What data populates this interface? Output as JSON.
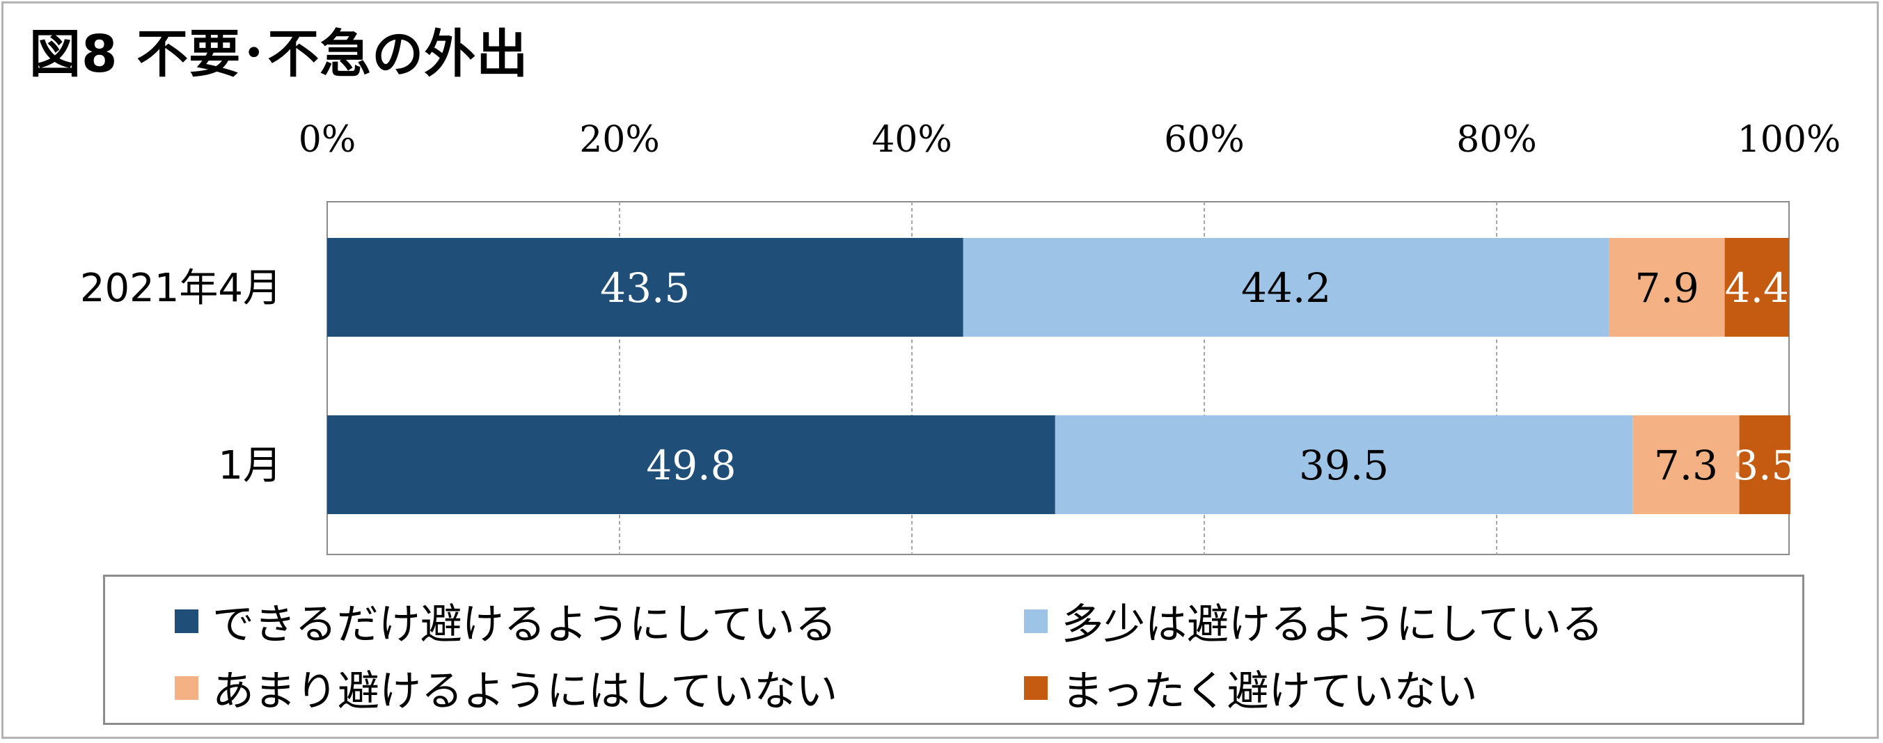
{
  "title": "図8 不要･不急の外出",
  "chart_data": {
    "type": "bar",
    "orientation": "horizontal",
    "stacked": true,
    "categories": [
      "2021年4月",
      "1月"
    ],
    "series": [
      {
        "name": "できるだけ避けるようにしている",
        "color": "#1f4e79",
        "label_color": "#ffffff",
        "values": [
          43.5,
          49.8
        ]
      },
      {
        "name": "多少は避けるようにしている",
        "color": "#9dc3e6",
        "label_color": "#000000",
        "values": [
          44.2,
          39.5
        ]
      },
      {
        "name": "あまり避けるようにはしていない",
        "color": "#f4b183",
        "label_color": "#000000",
        "values": [
          7.9,
          7.3
        ]
      },
      {
        "name": "まったく避けていない",
        "color": "#c55a11",
        "label_color": "#ffffff",
        "values": [
          4.4,
          3.5
        ]
      }
    ],
    "x_ticks": [
      "0%",
      "20%",
      "40%",
      "60%",
      "80%",
      "100%"
    ],
    "xlim": [
      0,
      100
    ],
    "grid": "vertical dashed",
    "legend": "bottom"
  }
}
